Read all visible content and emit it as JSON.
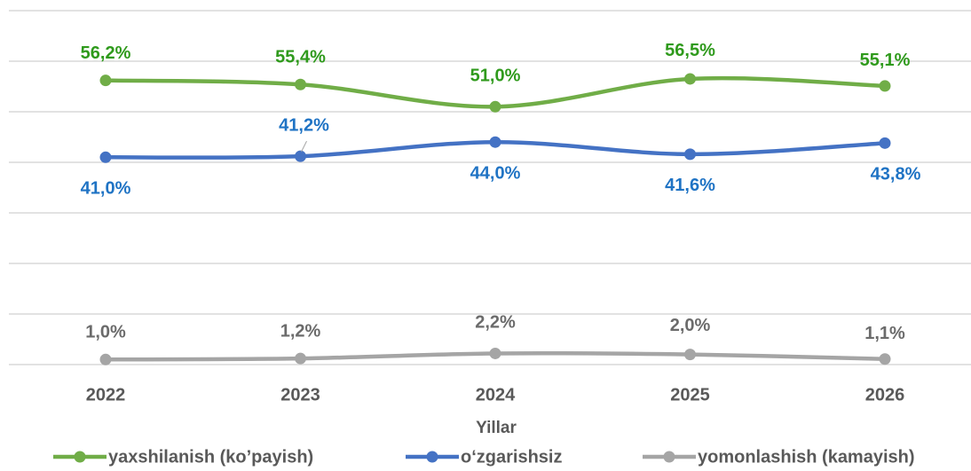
{
  "chart_data": {
    "type": "line",
    "categories": [
      "2022",
      "2023",
      "2024",
      "2025",
      "2026"
    ],
    "x_label": "Yillar",
    "ylim": [
      0,
      70
    ],
    "yticks": [
      0,
      10,
      20,
      30,
      40,
      50,
      60,
      70
    ],
    "grid": true,
    "legend": "bottom",
    "series": [
      {
        "name": "yaxshilanish (ko’payish)",
        "color": "#70ad47",
        "label_color": "#2f9a1c",
        "values": [
          56.2,
          55.4,
          51.0,
          56.5,
          55.1
        ],
        "value_labels": [
          "56,2%",
          "55,4%",
          "51,0%",
          "56,5%",
          "55,1%"
        ]
      },
      {
        "name": "o‘zgarishsiz",
        "color": "#4472c4",
        "label_color": "#1f73c4",
        "values": [
          41.0,
          41.2,
          44.0,
          41.6,
          43.8
        ],
        "value_labels": [
          "41,0%",
          "41,2%",
          "44,0%",
          "41,6%",
          "43,8%"
        ]
      },
      {
        "name": "yomonlashish (kamayish)",
        "color": "#a5a5a5",
        "label_color": "#6b6b6b",
        "values": [
          1.0,
          1.2,
          2.2,
          2.0,
          1.1
        ],
        "value_labels": [
          "1,0%",
          "1,2%",
          "2,2%",
          "2,0%",
          "1,1%"
        ]
      }
    ]
  }
}
